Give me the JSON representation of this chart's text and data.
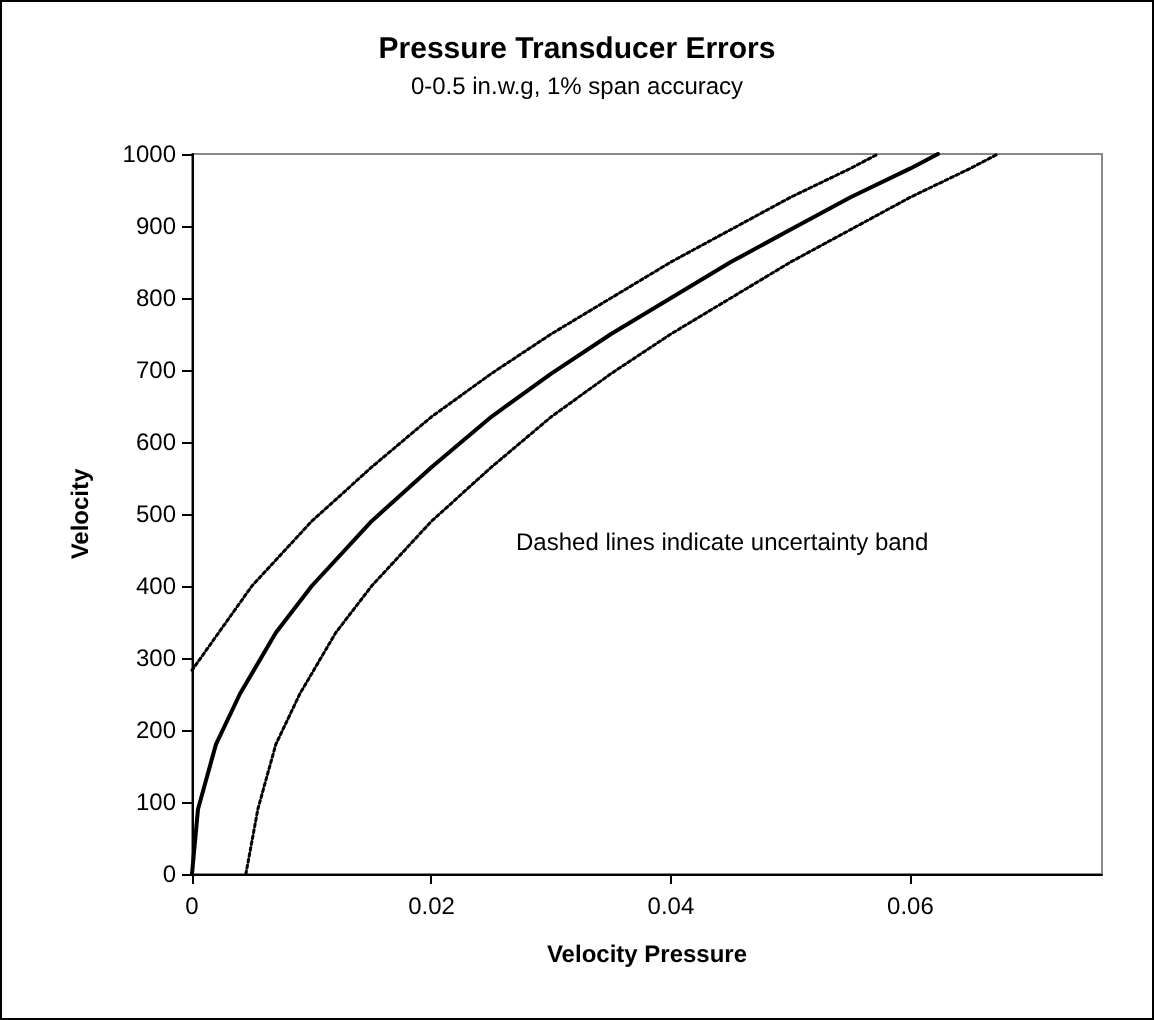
{
  "chart_data": {
    "type": "line",
    "title": "Pressure Transducer Errors",
    "subtitle": "0-0.5 in.w.g, 1% span accuracy",
    "xlabel": "Velocity Pressure",
    "ylabel": "Velocity",
    "annotations": [
      "Dashed lines indicate uncertainty band"
    ],
    "xlim": [
      0,
      0.076
    ],
    "xticks": [
      0,
      0.02,
      0.04,
      0.06
    ],
    "ylim": [
      0,
      1000
    ],
    "yticks": [
      0,
      100,
      200,
      300,
      400,
      500,
      600,
      700,
      800,
      900,
      1000
    ],
    "grid": false,
    "marker": "none",
    "series": [
      {
        "color": "#000000",
        "line_style": "solid",
        "x": [
          0,
          0.0005,
          0.002,
          0.004,
          0.007,
          0.01,
          0.015,
          0.02,
          0.025,
          0.03,
          0.035,
          0.04,
          0.045,
          0.05,
          0.055,
          0.06,
          0.0623
        ],
        "values": [
          0,
          90,
          180,
          250,
          335,
          400,
          490,
          565,
          635,
          695,
          750,
          800,
          850,
          895,
          940,
          980,
          1000
        ]
      },
      {
        "color": "#000000",
        "line_style": "dotted",
        "x": [
          0,
          0.005,
          0.01,
          0.015,
          0.02,
          0.025,
          0.03,
          0.035,
          0.04,
          0.045,
          0.05,
          0.055,
          0.0573
        ],
        "values": [
          283,
          400,
          490,
          565,
          635,
          695,
          750,
          800,
          850,
          895,
          940,
          980,
          1000
        ]
      },
      {
        "color": "#000000",
        "line_style": "dotted",
        "x": [
          0.0045,
          0.0055,
          0.007,
          0.009,
          0.012,
          0.015,
          0.02,
          0.025,
          0.03,
          0.035,
          0.04,
          0.045,
          0.05,
          0.055,
          0.06,
          0.065,
          0.0673
        ],
        "values": [
          0,
          90,
          180,
          250,
          335,
          400,
          490,
          565,
          635,
          695,
          750,
          800,
          850,
          895,
          940,
          980,
          1000
        ]
      }
    ]
  }
}
